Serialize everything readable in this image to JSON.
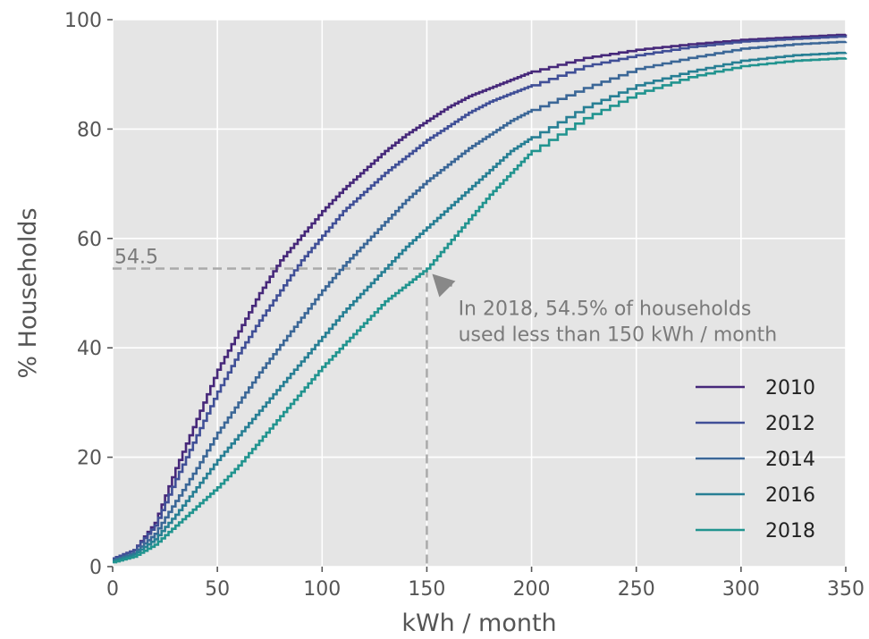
{
  "chart_data": {
    "type": "line",
    "xlabel": "kWh / month",
    "ylabel": "% Households",
    "xlim": [
      0,
      350
    ],
    "ylim": [
      0,
      100
    ],
    "xticks": [
      0,
      50,
      100,
      150,
      200,
      250,
      300,
      350
    ],
    "yticks": [
      0,
      20,
      40,
      60,
      80,
      100
    ],
    "grid": true,
    "background": "#e5e5e5",
    "legend_position": "lower-right",
    "x": [
      0,
      10,
      20,
      30,
      40,
      50,
      60,
      70,
      80,
      90,
      100,
      110,
      120,
      130,
      140,
      150,
      160,
      170,
      180,
      190,
      200,
      225,
      250,
      275,
      300,
      325,
      350
    ],
    "series": [
      {
        "name": "2010",
        "color": "#46287a",
        "values": [
          1.5,
          3,
          8,
          18,
          27,
          36,
          43,
          50,
          56,
          60.5,
          65,
          69,
          72.5,
          76,
          79,
          81.5,
          84,
          86,
          87.5,
          89,
          90.5,
          93,
          94.5,
          95.5,
          96.3,
          96.8,
          97.3
        ]
      },
      {
        "name": "2012",
        "color": "#404f97",
        "values": [
          1.5,
          3,
          7.5,
          16,
          24,
          32,
          39,
          45,
          50.5,
          56,
          60.5,
          65,
          68.5,
          72,
          75,
          78,
          80.5,
          83,
          85,
          86.5,
          88,
          91.5,
          93.5,
          95,
          96,
          96.5,
          97
        ]
      },
      {
        "name": "2014",
        "color": "#3b6797",
        "values": [
          1.2,
          2.5,
          6,
          12,
          18,
          24.5,
          30,
          35.5,
          40.5,
          45.5,
          50.5,
          55,
          59,
          63,
          67,
          70.5,
          73.5,
          76.5,
          79,
          81.5,
          83.5,
          87.5,
          91,
          93,
          94.7,
          95.5,
          96
        ]
      },
      {
        "name": "2016",
        "color": "#277f94",
        "values": [
          1,
          2.2,
          5,
          9.5,
          14.5,
          19.5,
          24,
          28.5,
          33,
          37.5,
          42,
          46.5,
          50.5,
          54.5,
          58.5,
          62,
          65.5,
          69,
          72.5,
          76,
          78.5,
          84,
          88,
          90.5,
          92.5,
          93.5,
          94
        ]
      },
      {
        "name": "2018",
        "color": "#21948f",
        "values": [
          0.8,
          1.8,
          4,
          7.5,
          11,
          14.5,
          18.5,
          23,
          27.5,
          32,
          36.5,
          40.5,
          44.5,
          48.5,
          51.5,
          54.5,
          59,
          63.5,
          68,
          72,
          76,
          82,
          86.5,
          89.5,
          91.5,
          92.5,
          93
        ]
      }
    ],
    "annotation": {
      "label": "54.5",
      "text_line1": "In 2018, 54.5% of households",
      "text_line2": "used less than 150 kWh / month",
      "x": 150,
      "y": 54.5,
      "text_x": 165,
      "text_y": 46
    }
  }
}
